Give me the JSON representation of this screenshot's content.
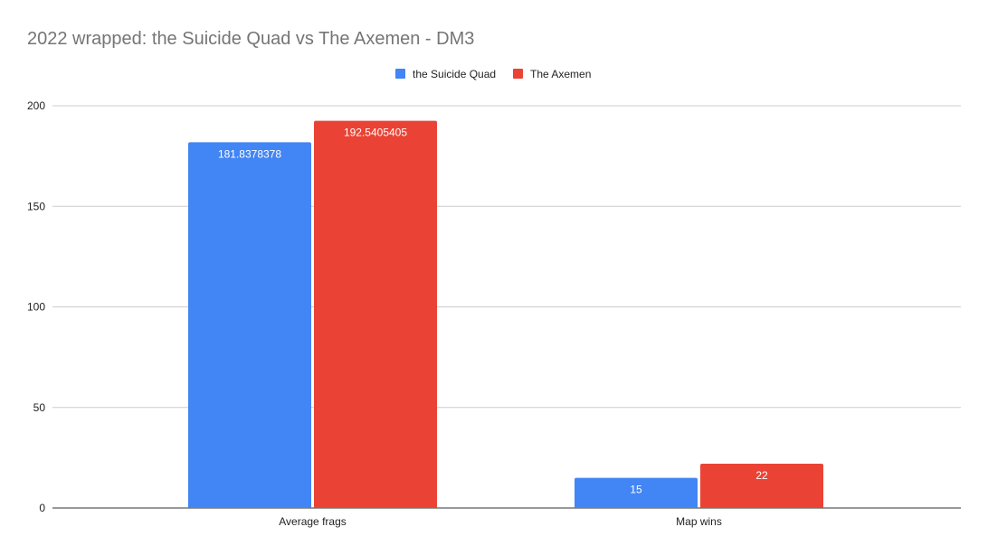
{
  "chart_data": {
    "type": "bar",
    "title": "2022 wrapped: the Suicide Quad vs The Axemen - DM3",
    "categories": [
      "Average frags",
      "Map wins"
    ],
    "series": [
      {
        "name": "the Suicide Quad",
        "color": "#4285f4",
        "values": [
          181.8378378,
          15
        ],
        "labels": [
          "181.8378378",
          "15"
        ]
      },
      {
        "name": "The Axemen",
        "color": "#ea4335",
        "values": [
          192.5405405,
          22
        ],
        "labels": [
          "192.5405405",
          "22"
        ]
      }
    ],
    "xlabel": "",
    "ylabel": "",
    "ylim": [
      0,
      200
    ],
    "yticks": [
      "0",
      "50",
      "100",
      "150",
      "200"
    ],
    "grid": true,
    "legend": "top-center"
  }
}
